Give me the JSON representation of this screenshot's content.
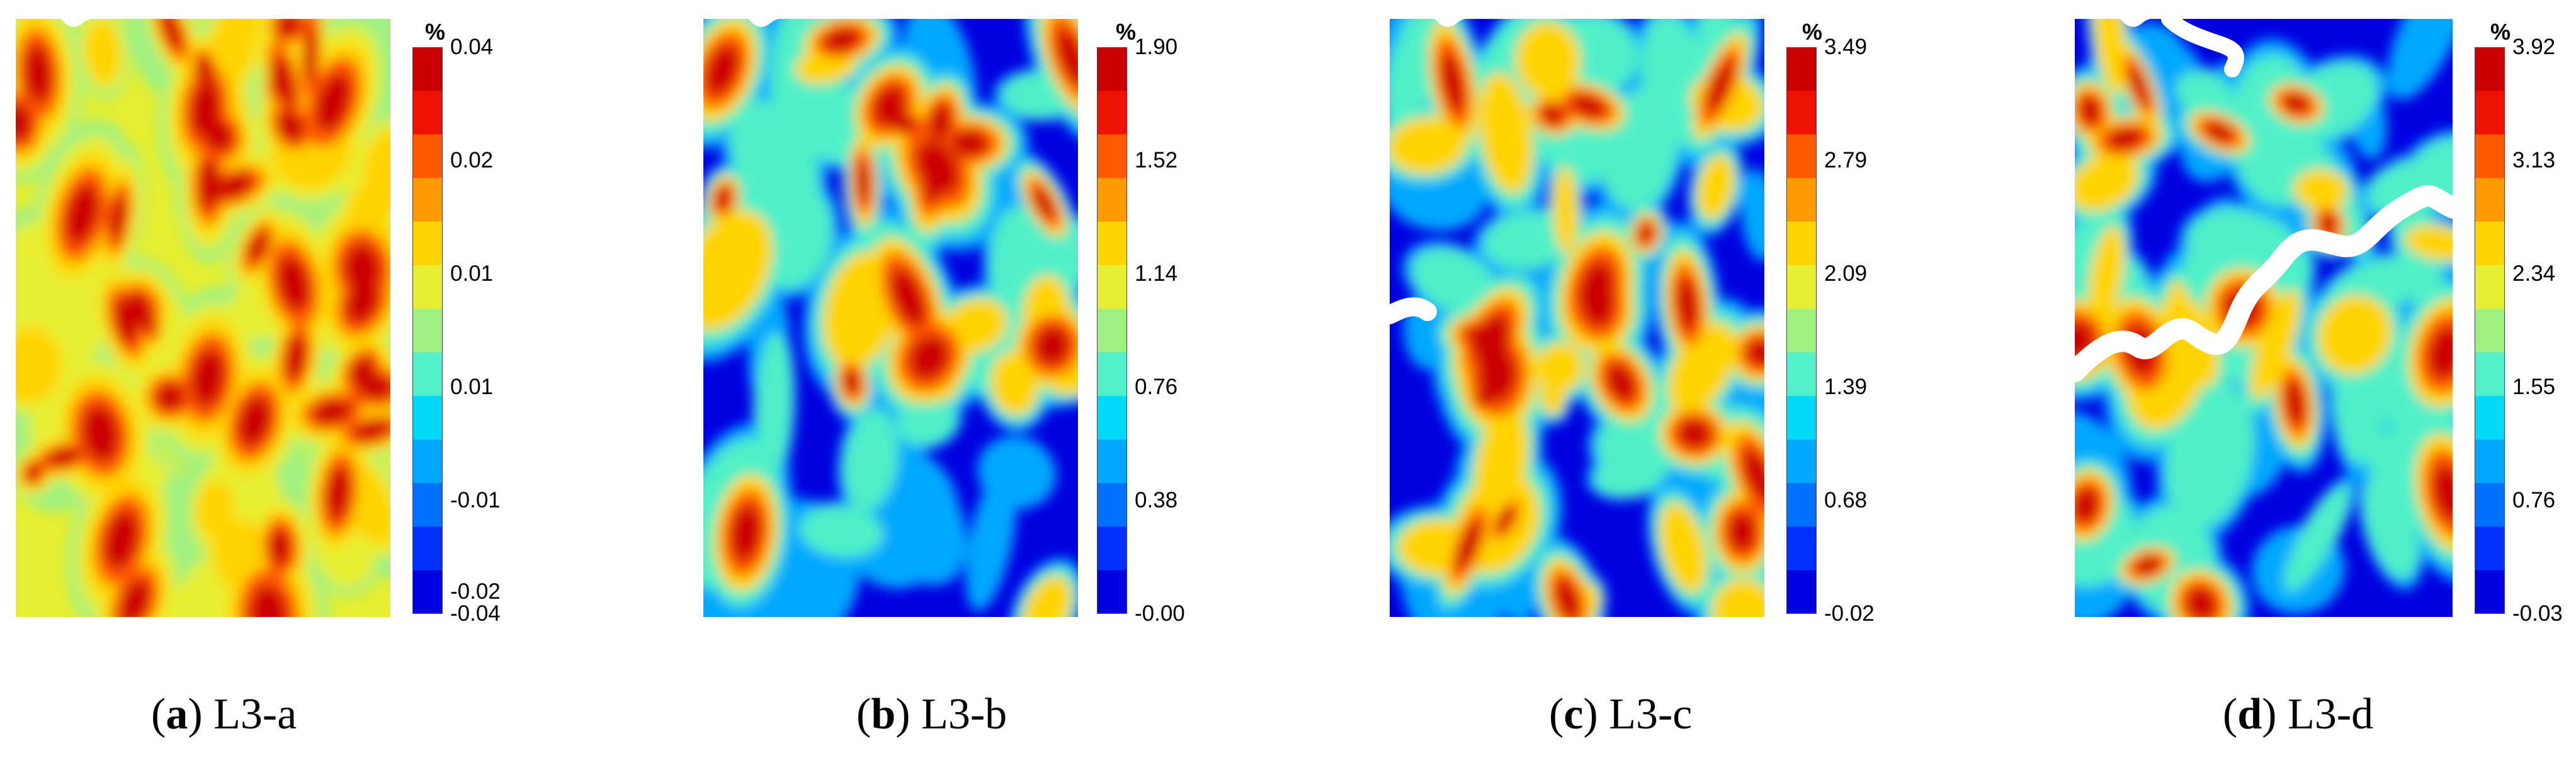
{
  "colormap": [
    "#0000e0",
    "#0030ff",
    "#0070ff",
    "#00a8ff",
    "#00d8f8",
    "#50f0c8",
    "#9ff080",
    "#e8ef30",
    "#ffd400",
    "#ff9a00",
    "#ff5a00",
    "#ee1000",
    "#cc0000"
  ],
  "panels": [
    {
      "id": "L3-a",
      "caption_letter": "a",
      "caption_text": "L3-a",
      "unit": "%",
      "colorbar_labels": [
        "0.04",
        "0.02",
        "0.01",
        "0.01",
        "-0.01",
        "-0.02",
        "-0.04"
      ],
      "background_level": 0.55
    },
    {
      "id": "L3-b",
      "caption_letter": "b",
      "caption_text": "L3-b",
      "unit": "%",
      "colorbar_labels": [
        "1.90",
        "1.52",
        "1.14",
        "0.76",
        "0.38",
        "-0.00"
      ],
      "background_level": 0.0
    },
    {
      "id": "L3-c",
      "caption_letter": "c",
      "caption_text": "L3-c",
      "unit": "%",
      "colorbar_labels": [
        "3.49",
        "2.79",
        "2.09",
        "1.39",
        "0.68",
        "-0.02"
      ],
      "background_level": 0.0
    },
    {
      "id": "L3-d",
      "caption_letter": "d",
      "caption_text": "L3-d",
      "unit": "%",
      "colorbar_labels": [
        "3.92",
        "3.13",
        "2.34",
        "1.55",
        "0.76",
        "-0.03"
      ],
      "background_level": 0.0
    }
  ]
}
